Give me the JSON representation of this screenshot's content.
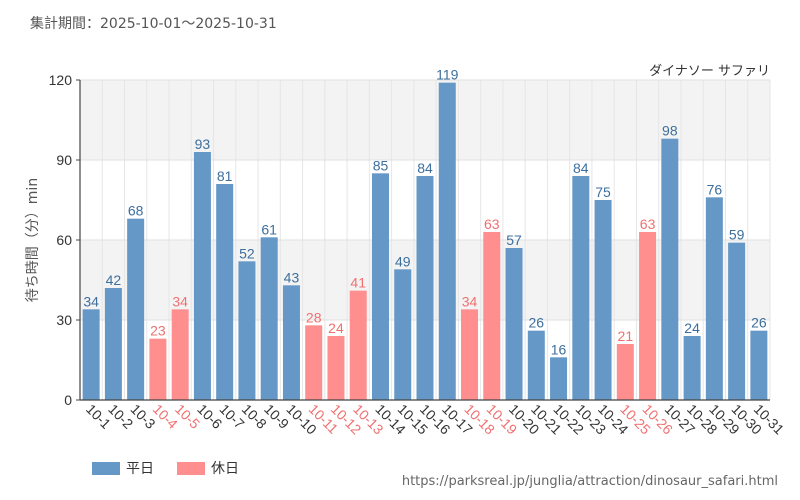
{
  "header": {
    "period": "集計期間：2025-10-01～2025-10-31"
  },
  "legend": {
    "weekday_label": "平日",
    "holiday_label": "休日"
  },
  "footer": {
    "source_url": "https://parksreal.jp/junglia/attraction/dinosaur_safari.html"
  },
  "colors": {
    "weekday": "#6598c6",
    "holiday": "#ff8e8e",
    "weekday_text": "#3d6f9e",
    "holiday_text": "#f07070",
    "axis_text": "#333333"
  },
  "chart_data": {
    "type": "bar",
    "title": "ダイナソー サファリ",
    "xlabel": "",
    "ylabel": "待ち時間（分）min",
    "ylim": [
      0,
      120
    ],
    "yticks": [
      0,
      30,
      60,
      90,
      120
    ],
    "categories": [
      "10-1",
      "10-2",
      "10-3",
      "10-4",
      "10-5",
      "10-6",
      "10-7",
      "10-8",
      "10-9",
      "10-10",
      "10-11",
      "10-12",
      "10-13",
      "10-14",
      "10-15",
      "10-16",
      "10-17",
      "10-18",
      "10-19",
      "10-20",
      "10-21",
      "10-22",
      "10-23",
      "10-24",
      "10-25",
      "10-26",
      "10-27",
      "10-28",
      "10-29",
      "10-30",
      "10-31"
    ],
    "values": [
      34,
      42,
      68,
      23,
      34,
      93,
      81,
      52,
      61,
      43,
      28,
      24,
      41,
      85,
      49,
      84,
      119,
      34,
      63,
      57,
      26,
      16,
      84,
      75,
      21,
      63,
      98,
      24,
      76,
      59,
      26
    ],
    "day_type": [
      "weekday",
      "weekday",
      "weekday",
      "holiday",
      "holiday",
      "weekday",
      "weekday",
      "weekday",
      "weekday",
      "weekday",
      "holiday",
      "holiday",
      "holiday",
      "weekday",
      "weekday",
      "weekday",
      "weekday",
      "holiday",
      "holiday",
      "weekday",
      "weekday",
      "weekday",
      "weekday",
      "weekday",
      "holiday",
      "holiday",
      "weekday",
      "weekday",
      "weekday",
      "weekday",
      "weekday"
    ],
    "series": [
      {
        "name": "平日",
        "type": "weekday"
      },
      {
        "name": "休日",
        "type": "holiday"
      }
    ]
  }
}
